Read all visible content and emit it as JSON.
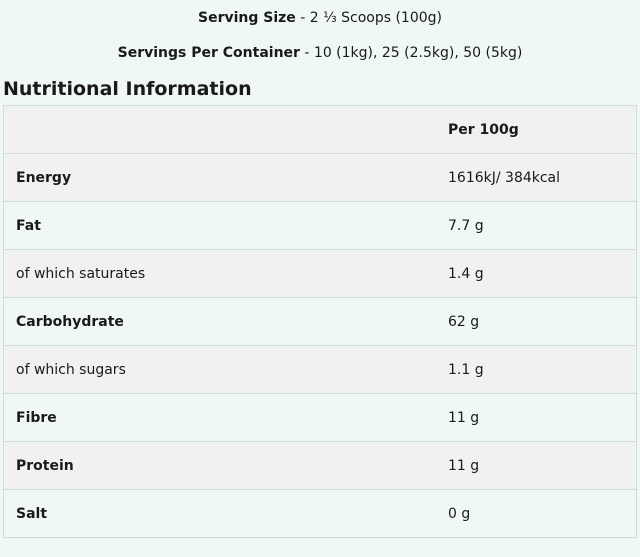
{
  "serving_size": {
    "label": "Serving Size",
    "value": "- 2 ⅓ Scoops (100g)"
  },
  "servings_per_container": {
    "label": "Servings Per Container",
    "value": "- 10 (1kg), 25 (2.5kg), 50 (5kg)"
  },
  "title": "Nutritional Information",
  "table": {
    "header": {
      "name": "",
      "value": "Per 100g"
    },
    "rows": [
      {
        "name": "Energy",
        "value": "1616kJ/ 384kcal",
        "bold": true
      },
      {
        "name": "Fat",
        "value": "7.7 g",
        "bold": true
      },
      {
        "name": "of which saturates",
        "value": "1.4 g",
        "bold": false
      },
      {
        "name": "Carbohydrate",
        "value": "62 g",
        "bold": true
      },
      {
        "name": "of which sugars",
        "value": "1.1 g",
        "bold": false
      },
      {
        "name": "Fibre",
        "value": "11 g",
        "bold": true
      },
      {
        "name": "Protein",
        "value": "11 g",
        "bold": true
      },
      {
        "name": "Salt",
        "value": "0 g",
        "bold": true
      }
    ]
  },
  "colors": {
    "background": "#eff7f7",
    "row_alt": "#f1f1f1",
    "border": "#d3dada"
  }
}
